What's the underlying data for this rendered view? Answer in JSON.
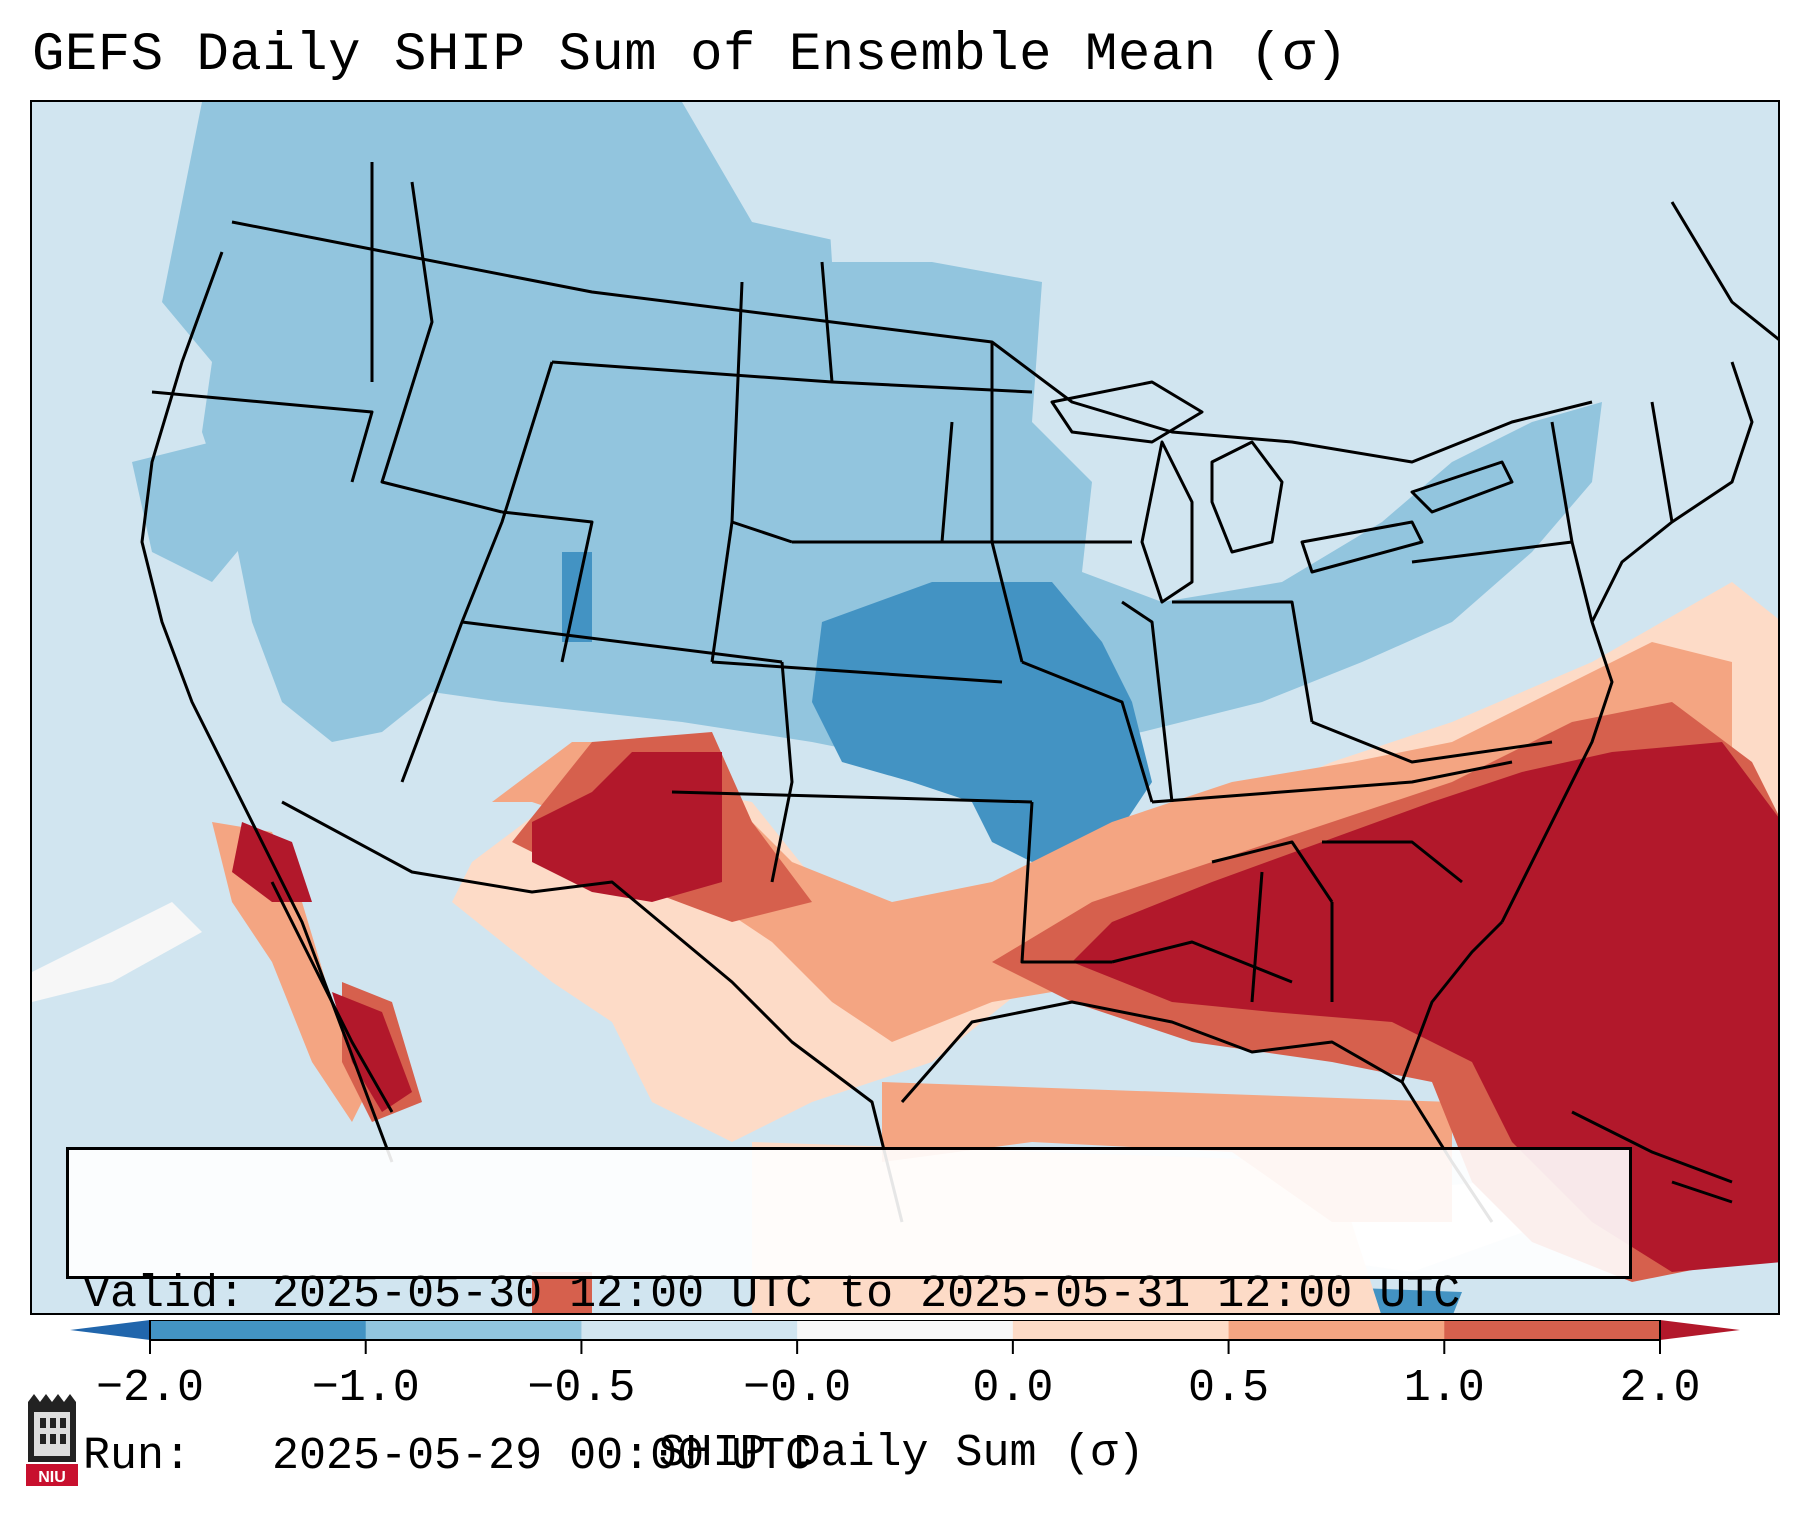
{
  "title": "GEFS Daily SHIP Sum of Ensemble Mean (σ)",
  "info": {
    "valid_label": "Valid:",
    "valid_value": "2025-05-30 12:00 UTC to 2025-05-31 12:00 UTC",
    "run_label": "Run:",
    "run_value": "2025-05-29 00:00 UTC"
  },
  "colorbar": {
    "label": "SHIP Daily Sum (σ)",
    "ticks": [
      "−2.0",
      "−1.0",
      "−0.5",
      "−0.0",
      "0.0",
      "0.5",
      "1.0",
      "2.0"
    ],
    "bin_colors": [
      "#4393c3",
      "#92c5de",
      "#d1e5f0",
      "#f7f7f7",
      "#fddbc7",
      "#f4a582",
      "#d6604d"
    ],
    "under_color": "#2166ac",
    "over_color": "#b2182b"
  },
  "map": {
    "projection": "Lambert Conformal (CONUS)",
    "field_colors": {
      "deep_negative": "#4393c3",
      "negative": "#92c5de",
      "slight_negative": "#d1e5f0",
      "near_zero": "#f7f7f7",
      "slight_positive": "#fddbc7",
      "positive": "#f4a582",
      "strong_positive": "#d6604d",
      "extreme_positive": "#b2182b"
    }
  },
  "logo": {
    "text": "NIU",
    "icon": "niu-logo-icon"
  }
}
